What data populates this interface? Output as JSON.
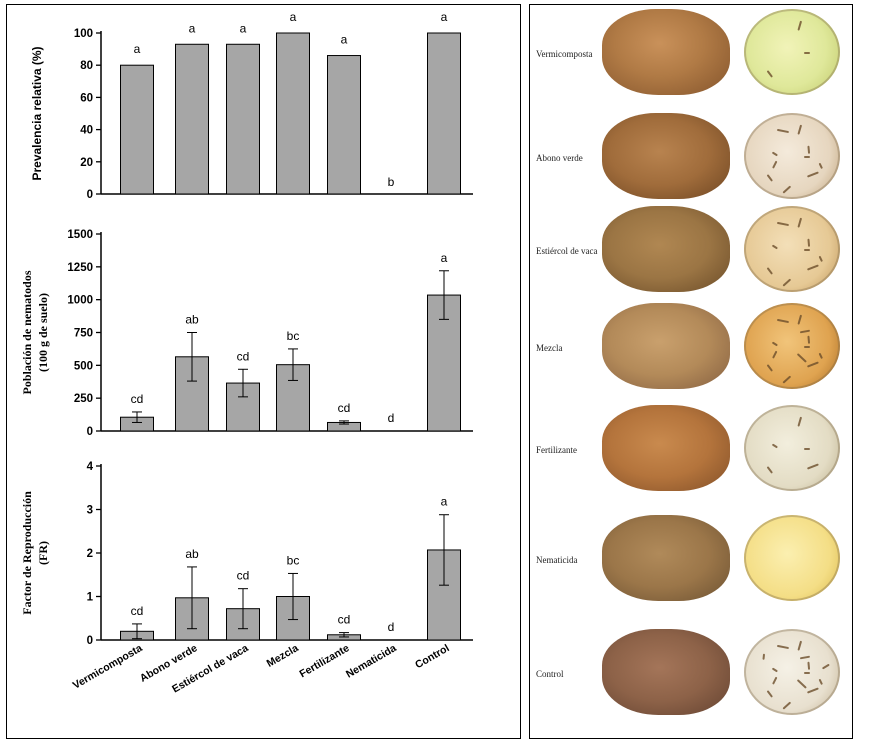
{
  "chart_data": [
    {
      "type": "bar",
      "ylabel": "Prevalencia relativa (%)",
      "ylim": [
        0,
        100
      ],
      "yticks": [
        0,
        20,
        40,
        60,
        80,
        100
      ],
      "categories": [
        "Vermicomposta",
        "Abono verde",
        "Estiércol de vaca",
        "Mezcla",
        "Fertilizante",
        "Nematicida",
        "Control"
      ],
      "values": [
        80,
        93,
        93,
        100,
        86,
        0,
        100
      ],
      "letters": [
        "a",
        "a",
        "a",
        "a",
        "a",
        "b",
        "a"
      ]
    },
    {
      "type": "bar",
      "ylabel": [
        "Población de nematodos",
        "(100 g de suelo)"
      ],
      "ylim": [
        0,
        1500
      ],
      "yticks": [
        0,
        250,
        500,
        750,
        1000,
        1250,
        1500
      ],
      "categories": [
        "Vermicomposta",
        "Abono verde",
        "Estiércol de vaca",
        "Mezcla",
        "Fertilizante",
        "Nematicida",
        "Control"
      ],
      "values": [
        105,
        565,
        365,
        505,
        65,
        0,
        1035
      ],
      "errors": [
        40,
        185,
        105,
        120,
        12,
        0,
        185
      ],
      "letters": [
        "cd",
        "ab",
        "cd",
        "bc",
        "cd",
        "d",
        "a"
      ]
    },
    {
      "type": "bar",
      "ylabel": [
        "Factor de Reproducción",
        "(FR)"
      ],
      "ylim": [
        0,
        4
      ],
      "yticks": [
        0,
        1,
        2,
        3,
        4
      ],
      "categories": [
        "Vermicomposta",
        "Abono verde",
        "Estiércol de vaca",
        "Mezcla",
        "Fertilizante",
        "Nematicida",
        "Control"
      ],
      "values": [
        0.2,
        0.97,
        0.72,
        1.0,
        0.12,
        0,
        2.07
      ],
      "errors": [
        0.17,
        0.71,
        0.46,
        0.53,
        0.05,
        0,
        0.81
      ],
      "letters": [
        "cd",
        "ab",
        "cd",
        "bc",
        "cd",
        "d",
        "a"
      ]
    }
  ],
  "photos": {
    "rows": [
      {
        "label": "Vermicomposta"
      },
      {
        "label": "Abono verde"
      },
      {
        "label": "Estiércol de vaca"
      },
      {
        "label": "Mezcla"
      },
      {
        "label": "Fertilizante"
      },
      {
        "label": "Nematicida"
      },
      {
        "label": "Control"
      }
    ]
  }
}
